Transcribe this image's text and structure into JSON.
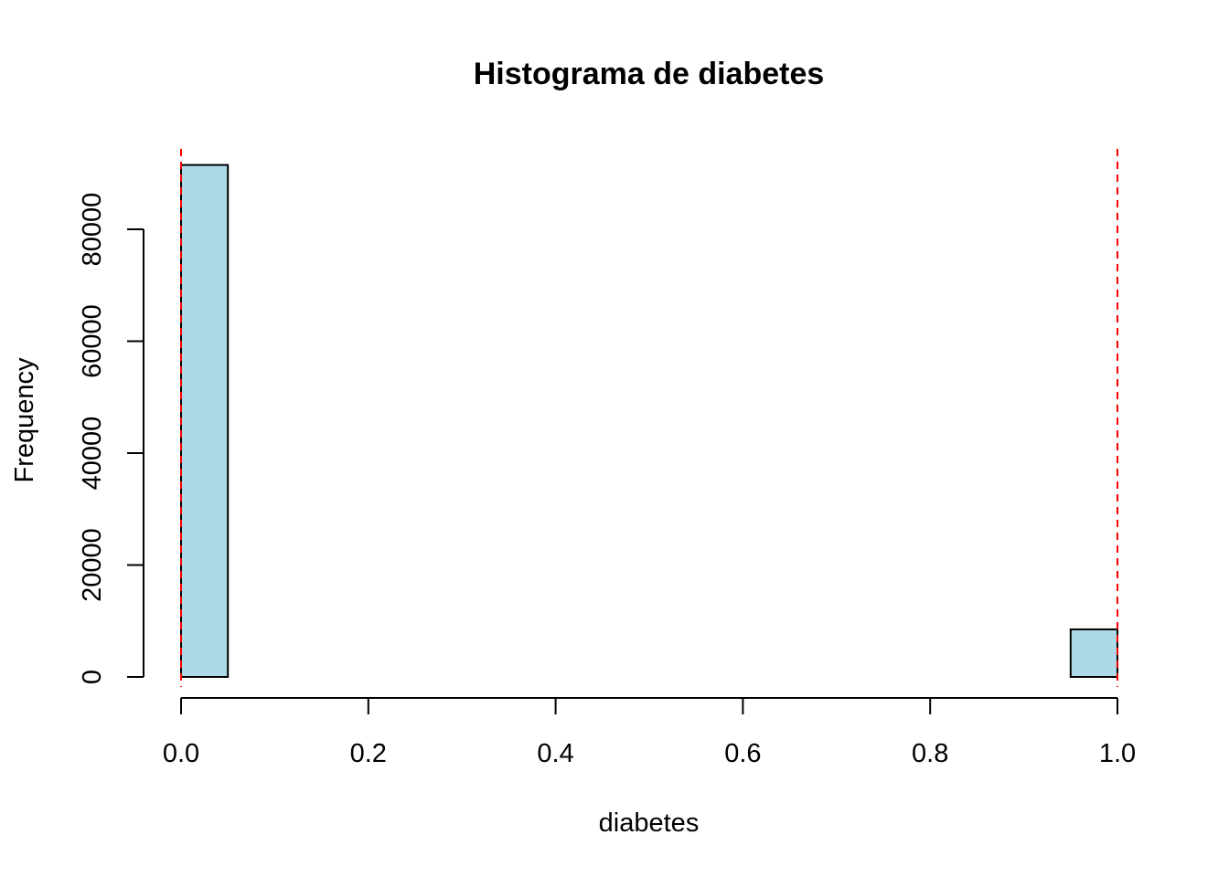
{
  "chart_data": {
    "type": "bar",
    "title": "Histograma de diabetes",
    "xlabel": "diabetes",
    "ylabel": "Frequency",
    "xlim": [
      0,
      1
    ],
    "ylim": [
      0,
      91500
    ],
    "bin_width": 0.05,
    "bins": [
      {
        "x0": 0.0,
        "x1": 0.05,
        "count": 91500
      },
      {
        "x0": 0.05,
        "x1": 0.1,
        "count": 0
      },
      {
        "x0": 0.1,
        "x1": 0.15,
        "count": 0
      },
      {
        "x0": 0.15,
        "x1": 0.2,
        "count": 0
      },
      {
        "x0": 0.2,
        "x1": 0.25,
        "count": 0
      },
      {
        "x0": 0.25,
        "x1": 0.3,
        "count": 0
      },
      {
        "x0": 0.3,
        "x1": 0.35,
        "count": 0
      },
      {
        "x0": 0.35,
        "x1": 0.4,
        "count": 0
      },
      {
        "x0": 0.4,
        "x1": 0.45,
        "count": 0
      },
      {
        "x0": 0.45,
        "x1": 0.5,
        "count": 0
      },
      {
        "x0": 0.5,
        "x1": 0.55,
        "count": 0
      },
      {
        "x0": 0.55,
        "x1": 0.6,
        "count": 0
      },
      {
        "x0": 0.6,
        "x1": 0.65,
        "count": 0
      },
      {
        "x0": 0.65,
        "x1": 0.7,
        "count": 0
      },
      {
        "x0": 0.7,
        "x1": 0.75,
        "count": 0
      },
      {
        "x0": 0.75,
        "x1": 0.8,
        "count": 0
      },
      {
        "x0": 0.8,
        "x1": 0.85,
        "count": 0
      },
      {
        "x0": 0.85,
        "x1": 0.9,
        "count": 0
      },
      {
        "x0": 0.9,
        "x1": 0.95,
        "count": 0
      },
      {
        "x0": 0.95,
        "x1": 1.0,
        "count": 8500
      }
    ],
    "x_ticks": [
      0.0,
      0.2,
      0.4,
      0.6,
      0.8,
      1.0
    ],
    "x_tick_labels": [
      "0.0",
      "0.2",
      "0.4",
      "0.6",
      "0.8",
      "1.0"
    ],
    "y_ticks": [
      0,
      20000,
      40000,
      60000,
      80000
    ],
    "y_tick_labels": [
      "0",
      "20000",
      "40000",
      "60000",
      "80000"
    ],
    "reference_lines": [
      {
        "axis": "x",
        "value": 0,
        "style": "dashed"
      },
      {
        "axis": "x",
        "value": 1,
        "style": "dashed"
      }
    ],
    "grid": false,
    "legend": "none",
    "colors": {
      "bar_fill": "#add8e6",
      "bar_stroke": "#000000",
      "reference_line": "#ff0000",
      "axis": "#000000"
    }
  }
}
